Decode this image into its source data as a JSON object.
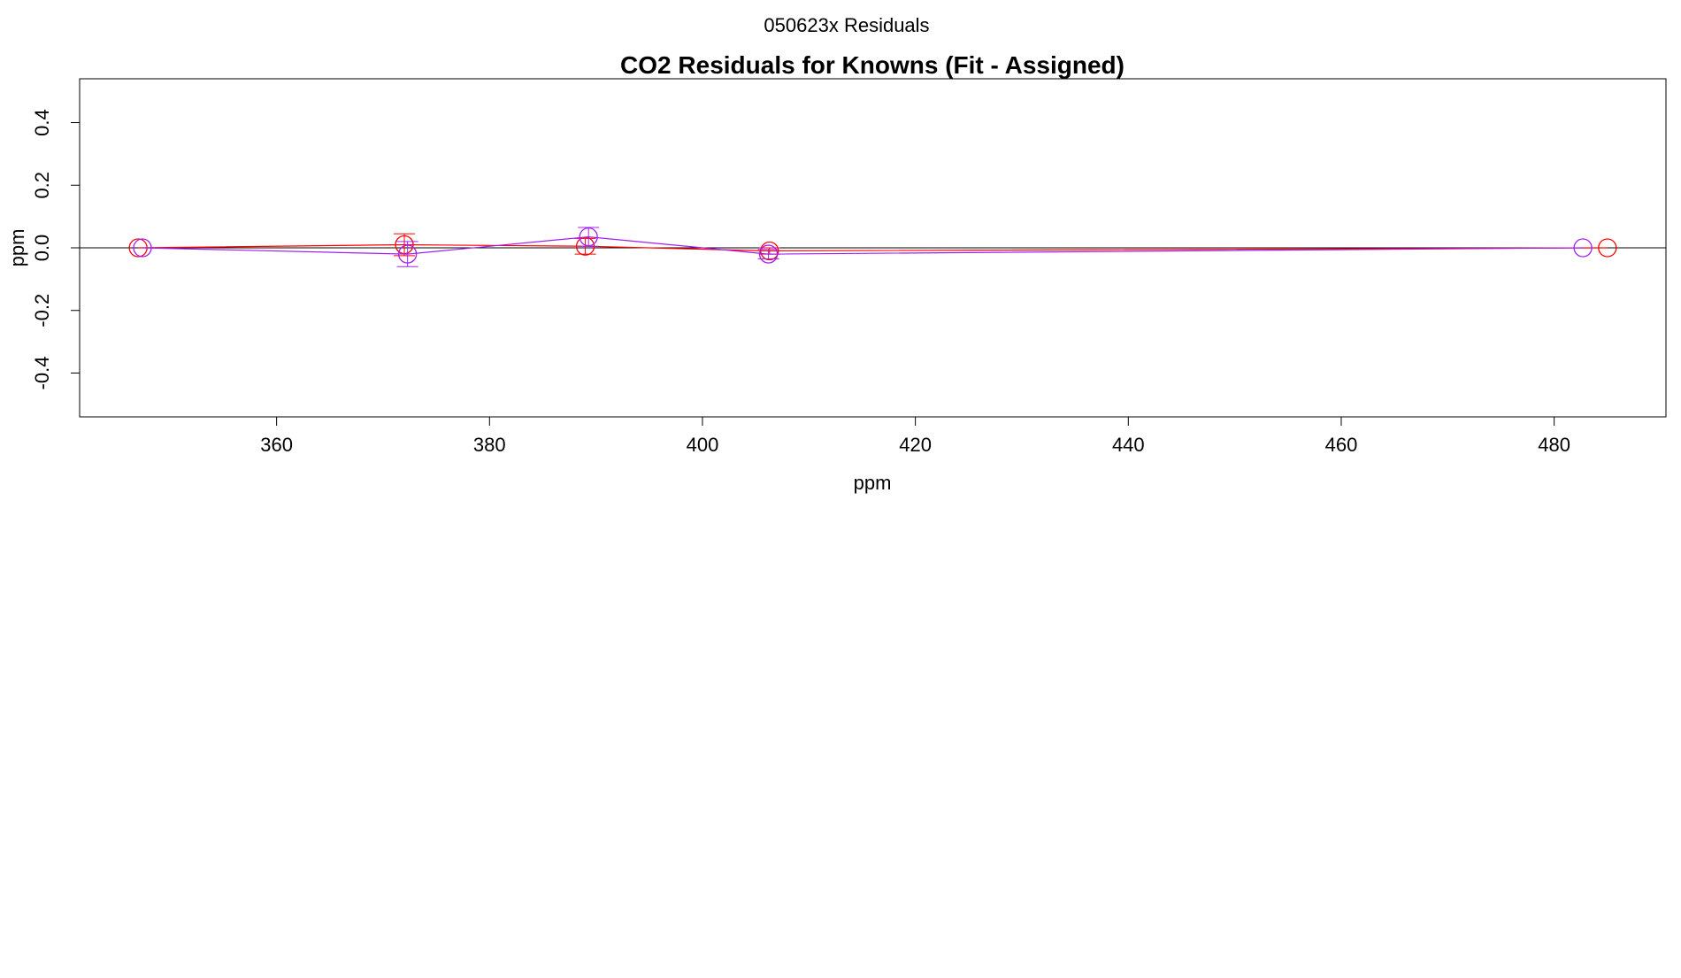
{
  "page": {
    "header": "050623x  Residuals"
  },
  "chart_data": {
    "type": "scatter",
    "title": "CO2 Residuals for Knowns (Fit - Assigned)",
    "xlabel": "ppm",
    "ylabel": "ppm",
    "xlim": [
      341.5,
      490.5
    ],
    "ylim": [
      -0.54,
      0.54
    ],
    "x_ticks": [
      360,
      380,
      400,
      420,
      440,
      460,
      480
    ],
    "x_tick_labels": [
      "360",
      "380",
      "400",
      "420",
      "440",
      "460",
      "480"
    ],
    "y_ticks": [
      -0.4,
      -0.2,
      0.0,
      0.2,
      0.4
    ],
    "y_tick_labels": [
      "-0.4",
      "-0.2",
      "0.0",
      "0.2",
      "0.4"
    ],
    "reference_line_y": 0,
    "grid": false,
    "legend": "none",
    "series": [
      {
        "color": "#ff0000",
        "marker": "open-circle",
        "points": [
          {
            "x": 347.0,
            "y": 0.0,
            "err": 0.0
          },
          {
            "x": 372.0,
            "y": 0.01,
            "err": 0.035
          },
          {
            "x": 389.0,
            "y": 0.005,
            "err": 0.025
          },
          {
            "x": 406.3,
            "y": -0.01,
            "err": 0.01
          },
          {
            "x": 485.0,
            "y": 0.0,
            "err": 0.0
          }
        ]
      },
      {
        "color": "#a020f0",
        "marker": "open-circle",
        "points": [
          {
            "x": 347.4,
            "y": 0.0,
            "err": 0.0
          },
          {
            "x": 372.3,
            "y": -0.02,
            "err": 0.04
          },
          {
            "x": 389.3,
            "y": 0.035,
            "err": 0.03
          },
          {
            "x": 406.2,
            "y": -0.02,
            "err": 0.015
          },
          {
            "x": 482.7,
            "y": 0.0,
            "err": 0.0
          }
        ]
      }
    ]
  }
}
